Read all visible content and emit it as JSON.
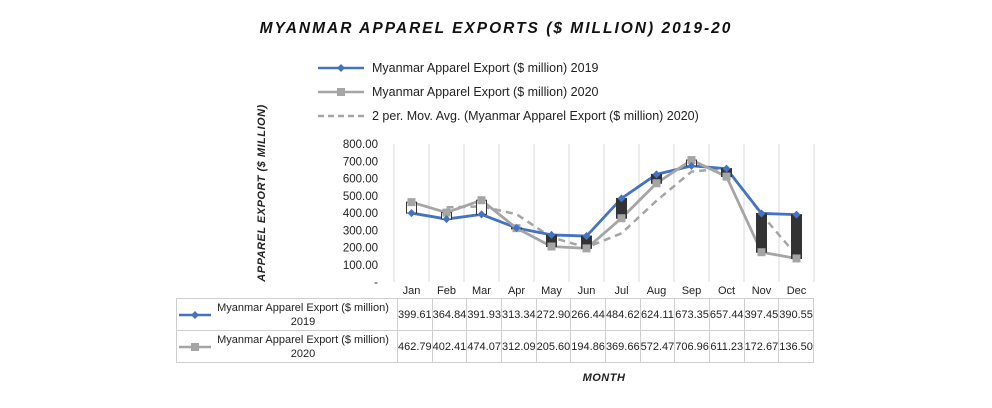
{
  "chart_data": {
    "type": "line",
    "title": "MYANMAR APPAREL EXPORTS ($ MILLION) 2019-20",
    "xlabel": "MONTH",
    "ylabel": "APPAREL EXPORT ($ MILLION)",
    "categories": [
      "Jan",
      "Feb",
      "Mar",
      "Apr",
      "May",
      "Jun",
      "Jul",
      "Aug",
      "Sep",
      "Oct",
      "Nov",
      "Dec"
    ],
    "ylim": [
      0,
      800
    ],
    "yticks": [
      "-",
      "100.00",
      "200.00",
      "300.00",
      "400.00",
      "500.00",
      "600.00",
      "700.00",
      "800.00"
    ],
    "grid": "vertical",
    "series": [
      {
        "name": "Myanmar Apparel Export ($ million) 2019",
        "name_line1": "Myanmar Apparel Export ($ million)",
        "name_line2": "2019",
        "color": "#4472c4",
        "marker": "diamond",
        "values": [
          399.61,
          364.84,
          391.93,
          313.34,
          272.9,
          266.44,
          484.62,
          624.11,
          673.35,
          657.44,
          397.45,
          390.55
        ],
        "labels": [
          "399.61",
          "364.84",
          "391.93",
          "313.34",
          "272.90",
          "266.44",
          "484.62",
          "624.11",
          "673.35",
          "657.44",
          "397.45",
          "390.55"
        ]
      },
      {
        "name": "Myanmar Apparel Export ($ million) 2020",
        "name_line1": "Myanmar Apparel Export ($ million)",
        "name_line2": "2020",
        "color": "#a5a5a5",
        "marker": "square",
        "values": [
          462.79,
          402.41,
          474.07,
          312.09,
          205.6,
          194.86,
          369.66,
          572.47,
          706.96,
          611.23,
          172.67,
          136.5
        ],
        "labels": [
          "462.79",
          "402.41",
          "474.07",
          "312.09",
          "205.60",
          "194.86",
          "369.66",
          "572.47",
          "706.96",
          "611.23",
          "172.67",
          "136.50"
        ]
      }
    ],
    "trendline": {
      "name": "2 per. Mov. Avg. (Myanmar Apparel Export ($ million) 2020)",
      "period": 2,
      "color": "#a5a5a5",
      "style": "dashed"
    },
    "updown_bars": {
      "up_color": "#ffffff",
      "down_color": "#333333"
    }
  }
}
